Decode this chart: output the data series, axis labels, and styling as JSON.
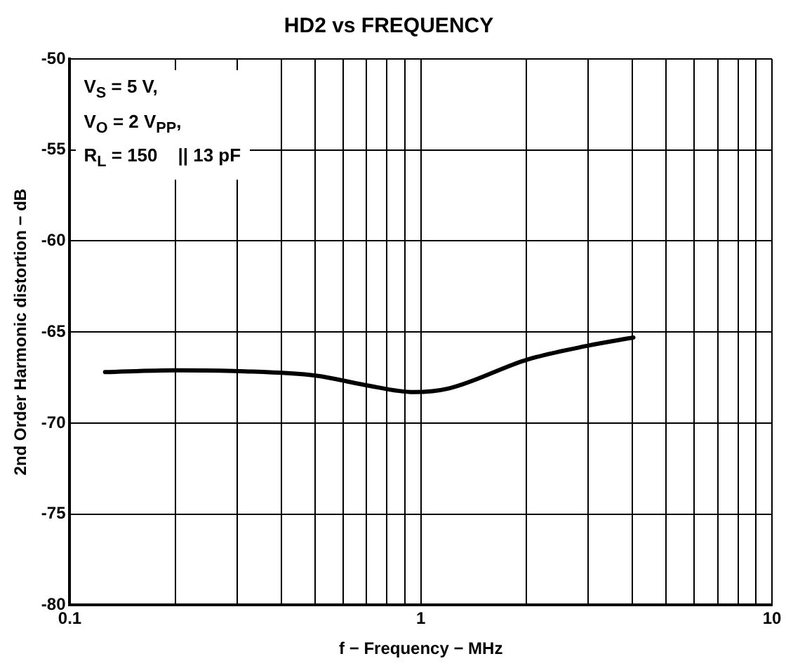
{
  "chart_data": {
    "type": "line",
    "title": "HD2 vs FREQUENCY",
    "xlabel": "f − Frequency − MHz",
    "ylabel": "2nd Order Harmonic distortion − dB",
    "log": "x",
    "grid": true,
    "legend": false,
    "marker": "none",
    "line_style": "solid",
    "xlim": [
      0.1,
      10
    ],
    "xticks": [
      0.1,
      {
        "value": 0.2,
        "label": null
      },
      {
        "value": 0.3,
        "label": null
      },
      {
        "value": 0.4,
        "label": null
      },
      {
        "value": 0.5,
        "label": null
      },
      {
        "value": 0.6,
        "label": null
      },
      {
        "value": 0.7,
        "label": null
      },
      {
        "value": 0.8,
        "label": null
      },
      {
        "value": 0.9,
        "label": null
      },
      1,
      {
        "value": 2,
        "label": null
      },
      {
        "value": 3,
        "label": null
      },
      {
        "value": 4,
        "label": null
      },
      {
        "value": 5,
        "label": null
      },
      {
        "value": 6,
        "label": null
      },
      {
        "value": 7,
        "label": null
      },
      {
        "value": 8,
        "label": null
      },
      {
        "value": 9,
        "label": null
      },
      10
    ],
    "ylim": [
      -80,
      -50
    ],
    "yticks": [
      -80,
      -75,
      -70,
      -65,
      -60,
      -55,
      -50
    ],
    "x": [
      0.126,
      0.2,
      0.305,
      0.505,
      0.69,
      0.955,
      1.2,
      2.02,
      2.99,
      4.03
    ],
    "series": [
      {
        "color": "#000000",
        "values": [
          -67.2,
          -67.1,
          -67.15,
          -67.4,
          -67.9,
          -68.3,
          -68.1,
          -66.5,
          -65.75,
          -65.3
        ]
      }
    ],
    "annotations": [
      "V$_{S}$ = 5 V,",
      "V$_{O}$ = 2 V$_{PP}$,",
      "R$_{L}$ = 150    || 13 pF"
    ]
  }
}
